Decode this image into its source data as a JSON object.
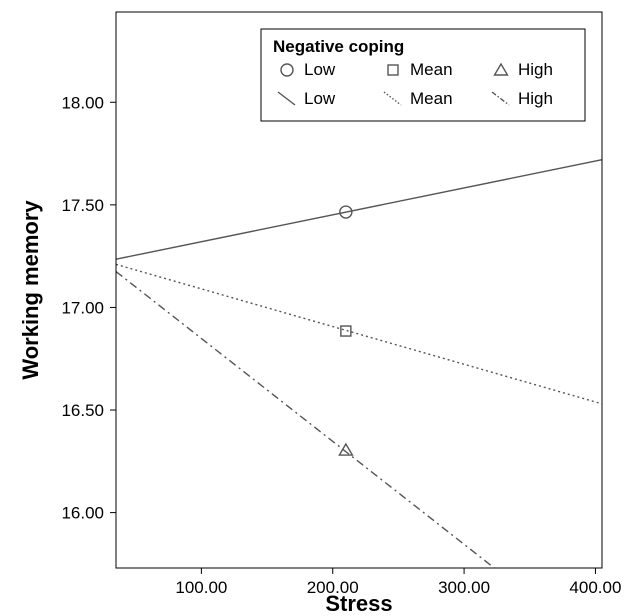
{
  "chart_data": {
    "type": "line",
    "xlabel": "Stress",
    "ylabel": "Working memory",
    "xlim": [
      35,
      405
    ],
    "ylim": [
      15.73,
      18.44
    ],
    "x_ticks": [
      "100.00",
      "200.00",
      "300.00",
      "400.00"
    ],
    "x_tick_values": [
      100,
      200,
      300,
      400
    ],
    "y_ticks": [
      "16.00",
      "16.50",
      "17.00",
      "17.50",
      "18.00"
    ],
    "y_tick_values": [
      16.0,
      16.5,
      17.0,
      17.5,
      18.0
    ],
    "grid": false,
    "legend": {
      "title": "Negative coping",
      "placement": "top-right",
      "marker_labels": [
        "Low",
        "Mean",
        "High"
      ],
      "line_labels": [
        "Low",
        "Mean",
        "High"
      ]
    },
    "series": [
      {
        "name": "Low",
        "marker": "circle",
        "line_style": "solid",
        "line": [
          [
            35,
            17.235
          ],
          [
            405,
            17.72
          ]
        ],
        "points": [
          [
            210,
            17.465
          ]
        ]
      },
      {
        "name": "Mean",
        "marker": "square",
        "line_style": "dotted",
        "line": [
          [
            35,
            17.21
          ],
          [
            405,
            16.53
          ]
        ],
        "points": [
          [
            210,
            16.885
          ]
        ]
      },
      {
        "name": "High",
        "marker": "triangle",
        "line_style": "dashdot",
        "line": [
          [
            35,
            17.175
          ],
          [
            323,
            15.73
          ]
        ],
        "points": [
          [
            210,
            16.305
          ]
        ]
      }
    ],
    "colors": {
      "lines": "#555555",
      "frame": "#000000",
      "text": "#000000"
    }
  }
}
